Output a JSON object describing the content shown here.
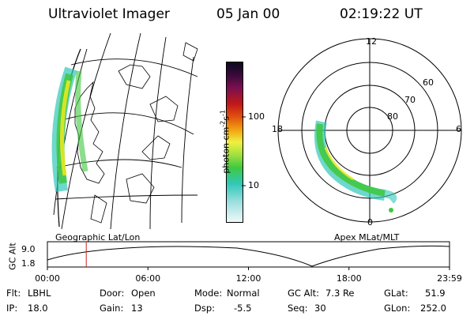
{
  "header": {
    "title": "Ultraviolet Imager",
    "date": "05 Jan 00",
    "time": "02:19:22 UT"
  },
  "colorbar": {
    "unit_label": "photon cm",
    "unit_exp1": "-2",
    "unit_s": "s",
    "unit_exp2": "-1",
    "tick_100": "100",
    "tick_10": "10"
  },
  "left_panel": {
    "label": "Geographic Lat/Lon"
  },
  "right_panel": {
    "label": "Apex MLat/MLT",
    "mlt_top": "12",
    "mlt_left": "18",
    "mlt_right": "6",
    "mlt_bottom": "0",
    "lat_60": "60",
    "lat_70": "70",
    "lat_80": "80"
  },
  "altitude_plot": {
    "ylabel": "GC Alt",
    "ytick_top": "9.0",
    "ytick_bottom": "1.8",
    "xticks": [
      "00:00",
      "06:00",
      "12:00",
      "18:00",
      "23:59"
    ],
    "marker_time_hours": 2.32
  },
  "info": {
    "flt_label": "Flt:",
    "flt_value": "LBHL",
    "ip_label": "IP:",
    "ip_value": "18.0",
    "door_label": "Door:",
    "door_value": "Open",
    "gain_label": "Gain:",
    "gain_value": "13",
    "mode_label": "Mode:",
    "mode_value": "Normal",
    "dsp_label": "Dsp:",
    "dsp_value": "-5.5",
    "gcalt_label": "GC Alt:",
    "gcalt_value": "7.3 Re",
    "seq_label": "Seq:",
    "seq_value": "30",
    "glat_label": "GLat:",
    "glat_value": "51.9",
    "glon_label": "GLon:",
    "glon_value": "252.0"
  },
  "colors": {
    "marker": "#cc2222",
    "aurora_bright": "#e8e820",
    "aurora_mid": "#40c840",
    "aurora_low": "#30c8b8"
  }
}
